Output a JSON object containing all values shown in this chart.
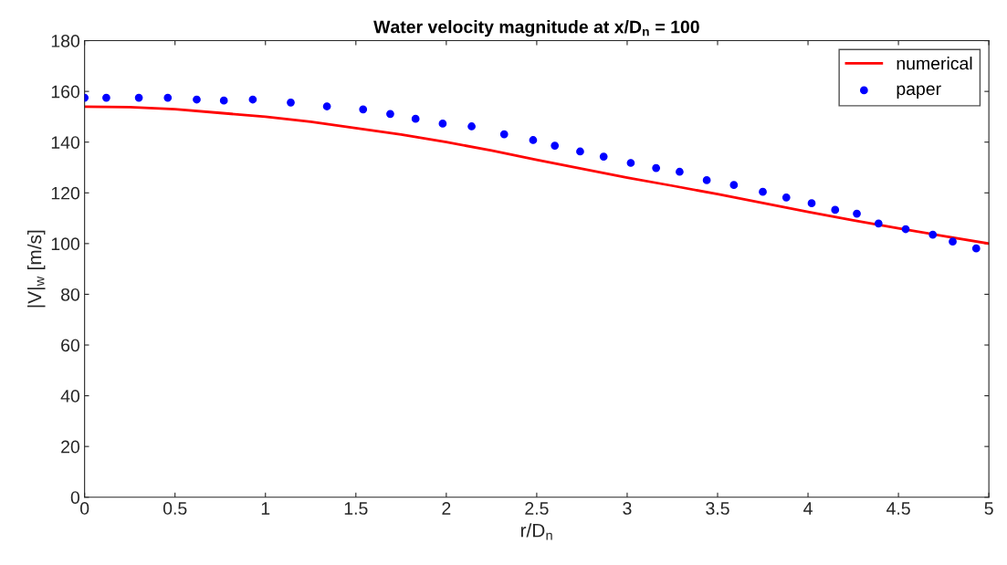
{
  "chart_data": {
    "type": "line",
    "title": "Water velocity magnitude at x/D$_{n}$ = 100",
    "xlabel": "r/D$_{n}$",
    "ylabel": "|V|$_{w}$ [m/s]",
    "xlim": [
      0,
      5
    ],
    "xticks": [
      0,
      0.5,
      1,
      1.5,
      2,
      2.5,
      3,
      3.5,
      4,
      4.5,
      5
    ],
    "ylim": [
      0,
      180
    ],
    "yticks": [
      0,
      20,
      40,
      60,
      80,
      100,
      120,
      140,
      160,
      180
    ],
    "grid": false,
    "legend": "top right",
    "series": [
      {
        "name": "numerical",
        "color": "#ff0000",
        "marker": "none",
        "line_style": "solid",
        "x": [
          0,
          0.25,
          0.5,
          0.75,
          1,
          1.25,
          1.5,
          1.75,
          2,
          2.25,
          2.5,
          2.75,
          3,
          3.25,
          3.5,
          3.75,
          4,
          4.25,
          4.5,
          4.75,
          5
        ],
        "values": [
          154,
          153.8,
          153,
          151.5,
          150,
          148,
          145.5,
          143,
          140,
          136.7,
          133,
          129.5,
          126,
          122.8,
          119.5,
          116,
          112.5,
          109.2,
          106,
          103,
          100
        ]
      },
      {
        "name": "paper",
        "type": "scatter",
        "color": "#0000ff",
        "marker": "circle",
        "x": [
          0,
          0.12,
          0.3,
          0.46,
          0.62,
          0.77,
          0.93,
          1.14,
          1.34,
          1.54,
          1.69,
          1.83,
          1.98,
          2.14,
          2.32,
          2.48,
          2.6,
          2.74,
          2.87,
          3.02,
          3.16,
          3.29,
          3.44,
          3.59,
          3.75,
          3.88,
          4.02,
          4.15,
          4.27,
          4.39,
          4.54,
          4.69,
          4.8,
          4.93
        ],
        "values": [
          157.5,
          157.5,
          157.5,
          157.5,
          156.8,
          156.4,
          156.8,
          155.6,
          154.1,
          152.9,
          151.1,
          149.2,
          147.3,
          146.2,
          143.1,
          140.8,
          138.6,
          136.3,
          134.3,
          131.8,
          129.8,
          128.3,
          125,
          123.1,
          120.4,
          118.2,
          115.9,
          113.3,
          111.8,
          107.9,
          105.7,
          103.5,
          100.8,
          98.1
        ]
      }
    ]
  }
}
